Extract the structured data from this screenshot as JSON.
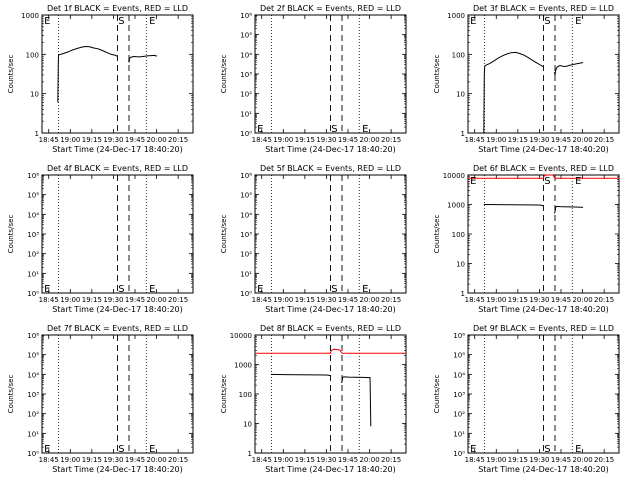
{
  "page": {
    "background": "#ffffff",
    "foreground": "#000000"
  },
  "chart_data": [
    {
      "type": "line",
      "det": "Det 1f",
      "title": "Det 1f BLACK = Events, RED = LLD",
      "xlabel": "Start Time (24-Dec-17 18:40:20)",
      "ylabel": "Counts/sec",
      "x_unit": "minutes since 18:40:20",
      "xlim": [
        0,
        105
      ],
      "x_ticks": [
        4.67,
        19.67,
        34.67,
        49.67,
        64.67,
        79.67,
        94.67
      ],
      "x_tick_labels": [
        "18:45",
        "19:00",
        "19:15",
        "19:30",
        "19:45",
        "20:00",
        "20:15"
      ],
      "y_scale": "log",
      "ylim": [
        1,
        1000
      ],
      "y_ticks": [
        1,
        10,
        100,
        1000
      ],
      "y_tick_labels": [
        "1",
        "10",
        "100",
        "1000"
      ],
      "dotted_vlines": [
        11.5,
        72.5
      ],
      "dashed_vlines": [
        52.5,
        60.5
      ],
      "markers": [
        {
          "text": "E",
          "x": 1.5,
          "y": 1100
        },
        {
          "text": "S",
          "x": 53,
          "y": 1100
        },
        {
          "text": "E",
          "x": 74.5,
          "y": 1100
        }
      ],
      "series": [
        {
          "name": "Events",
          "color": "#000000",
          "segments": [
            {
              "x": [
                11.0,
                11.3,
                11.5,
                12,
                15,
                18,
                21,
                24,
                27,
                30,
                33,
                36,
                39,
                42,
                45,
                48,
                51,
                52.5
              ],
              "y": [
                6,
                60,
                95,
                98,
                105,
                115,
                128,
                140,
                150,
                158,
                155,
                145,
                138,
                125,
                112,
                100,
                95,
                88
              ]
            },
            {
              "x": [
                60.0,
                60.5,
                61,
                62,
                64,
                66,
                68,
                70,
                72,
                74,
                76,
                78,
                80
              ],
              "y": [
                70,
                65,
                80,
                85,
                88,
                87,
                86,
                88,
                90,
                92,
                93,
                94,
                90
              ]
            }
          ]
        }
      ]
    },
    {
      "type": "line",
      "det": "Det 2f",
      "title": "Det 2f BLACK = Events, RED = LLD",
      "xlabel": "Start Time (24-Dec-17 18:40:20)",
      "ylabel": "Counts/sec",
      "x_unit": "minutes since 18:40:20",
      "xlim": [
        0,
        105
      ],
      "x_ticks": [
        4.67,
        19.67,
        34.67,
        49.67,
        64.67,
        79.67,
        94.67
      ],
      "x_tick_labels": [
        "18:45",
        "19:00",
        "19:15",
        "19:30",
        "19:45",
        "20:00",
        "20:15"
      ],
      "y_scale": "log",
      "ylim": [
        1,
        1000000
      ],
      "y_ticks": [
        1,
        10,
        100,
        1000,
        10000,
        100000,
        1000000
      ],
      "y_tick_labels": [
        "10⁰",
        "10¹",
        "10²",
        "10³",
        "10⁴",
        "10⁵",
        "10⁶"
      ],
      "dotted_vlines": [
        11.5,
        72.5
      ],
      "dashed_vlines": [
        52.5,
        60.5
      ],
      "markers": [
        {
          "text": "E",
          "x": 1.5,
          "y": 1.2
        },
        {
          "text": "S",
          "x": 53,
          "y": 1.2
        },
        {
          "text": "E",
          "x": 74.5,
          "y": 1.2
        }
      ],
      "series": []
    },
    {
      "type": "line",
      "det": "Det 3f",
      "title": "Det 3f BLACK = Events, RED = LLD",
      "xlabel": "Start Time (24-Dec-17 18:40:20)",
      "ylabel": "Counts/sec",
      "x_unit": "minutes since 18:40:20",
      "xlim": [
        0,
        105
      ],
      "x_ticks": [
        4.67,
        19.67,
        34.67,
        49.67,
        64.67,
        79.67,
        94.67
      ],
      "x_tick_labels": [
        "18:45",
        "19:00",
        "19:15",
        "19:30",
        "19:45",
        "20:00",
        "20:15"
      ],
      "y_scale": "log",
      "ylim": [
        1,
        1000
      ],
      "y_ticks": [
        1,
        10,
        100,
        1000
      ],
      "y_tick_labels": [
        "1",
        "10",
        "100",
        "1000"
      ],
      "dotted_vlines": [
        11.5,
        72.5
      ],
      "dashed_vlines": [
        52.5,
        60.5
      ],
      "markers": [
        {
          "text": "E",
          "x": 1.5,
          "y": 1100
        },
        {
          "text": "S",
          "x": 53,
          "y": 1100
        },
        {
          "text": "E",
          "x": 74.5,
          "y": 1100
        }
      ],
      "series": [
        {
          "name": "Events",
          "color": "#000000",
          "segments": [
            {
              "x": [
                11.0,
                11.3,
                11.6,
                12,
                15,
                18,
                21,
                24,
                27,
                30,
                33,
                36,
                39,
                42,
                45,
                48,
                51,
                52.5
              ],
              "y": [
                1,
                30,
                50,
                52,
                58,
                68,
                80,
                92,
                102,
                110,
                112,
                105,
                95,
                82,
                70,
                60,
                52,
                48
              ]
            },
            {
              "x": [
                60.0,
                60.5,
                61,
                62,
                64,
                66,
                68,
                70,
                72,
                74,
                76,
                78,
                80
              ],
              "y": [
                35,
                30,
                40,
                48,
                52,
                50,
                49,
                52,
                54,
                56,
                58,
                60,
                62
              ]
            }
          ]
        }
      ]
    },
    {
      "type": "line",
      "det": "Det 4f",
      "title": "Det 4f BLACK = Events, RED = LLD",
      "xlabel": "Start Time (24-Dec-17 18:40:20)",
      "ylabel": "Counts/sec",
      "x_unit": "minutes since 18:40:20",
      "xlim": [
        0,
        105
      ],
      "x_ticks": [
        4.67,
        19.67,
        34.67,
        49.67,
        64.67,
        79.67,
        94.67
      ],
      "x_tick_labels": [
        "18:45",
        "19:00",
        "19:15",
        "19:30",
        "19:45",
        "20:00",
        "20:15"
      ],
      "y_scale": "log",
      "ylim": [
        1,
        1000000
      ],
      "y_ticks": [
        1,
        10,
        100,
        1000,
        10000,
        100000,
        1000000
      ],
      "y_tick_labels": [
        "10⁰",
        "10¹",
        "10²",
        "10³",
        "10⁴",
        "10⁵",
        "10⁶"
      ],
      "dotted_vlines": [
        11.5,
        72.5
      ],
      "dashed_vlines": [
        52.5,
        60.5
      ],
      "markers": [
        {
          "text": "E",
          "x": 1.5,
          "y": 1.2
        },
        {
          "text": "S",
          "x": 53,
          "y": 1.2
        },
        {
          "text": "E",
          "x": 74.5,
          "y": 1.2
        }
      ],
      "series": []
    },
    {
      "type": "line",
      "det": "Det 5f",
      "title": "Det 5f BLACK = Events, RED = LLD",
      "xlabel": "Start Time (24-Dec-17 18:40:20)",
      "ylabel": "Counts/sec",
      "x_unit": "minutes since 18:40:20",
      "xlim": [
        0,
        105
      ],
      "x_ticks": [
        4.67,
        19.67,
        34.67,
        49.67,
        64.67,
        79.67,
        94.67
      ],
      "x_tick_labels": [
        "18:45",
        "19:00",
        "19:15",
        "19:30",
        "19:45",
        "20:00",
        "20:15"
      ],
      "y_scale": "log",
      "ylim": [
        1,
        1000000
      ],
      "y_ticks": [
        1,
        10,
        100,
        1000,
        10000,
        100000,
        1000000
      ],
      "y_tick_labels": [
        "10⁰",
        "10¹",
        "10²",
        "10³",
        "10⁴",
        "10⁵",
        "10⁶"
      ],
      "dotted_vlines": [
        11.5,
        72.5
      ],
      "dashed_vlines": [
        52.5,
        60.5
      ],
      "markers": [
        {
          "text": "E",
          "x": 1.5,
          "y": 1.2
        },
        {
          "text": "S",
          "x": 53,
          "y": 1.2
        },
        {
          "text": "E",
          "x": 74.5,
          "y": 1.2
        }
      ],
      "series": []
    },
    {
      "type": "line",
      "det": "Det 6f",
      "title": "Det 6f BLACK = Events, RED = LLD",
      "xlabel": "Start Time (24-Dec-17 18:40:20)",
      "ylabel": "Counts/sec",
      "x_unit": "minutes since 18:40:20",
      "xlim": [
        0,
        105
      ],
      "x_ticks": [
        4.67,
        19.67,
        34.67,
        49.67,
        64.67,
        79.67,
        94.67
      ],
      "x_tick_labels": [
        "18:45",
        "19:00",
        "19:15",
        "19:30",
        "19:45",
        "20:00",
        "20:15"
      ],
      "y_scale": "log",
      "ylim": [
        1,
        10000
      ],
      "y_ticks": [
        1,
        10,
        100,
        1000,
        10000
      ],
      "y_tick_labels": [
        "1",
        "10",
        "100",
        "1000",
        "10000"
      ],
      "dotted_vlines": [
        11.5,
        72.5
      ],
      "dashed_vlines": [
        52.5,
        60.5
      ],
      "markers": [
        {
          "text": "E",
          "x": 1.5,
          "y": 9000
        },
        {
          "text": "S",
          "x": 53,
          "y": 9000
        },
        {
          "text": "E",
          "x": 74.5,
          "y": 9000
        }
      ],
      "series": [
        {
          "name": "LLD",
          "color": "#ff0000",
          "segments": [
            {
              "x": [
                0,
                52.5,
                53,
                55,
                57,
                59,
                60.5,
                105
              ],
              "y": [
                7800,
                7800,
                9600,
                10500,
                10400,
                10200,
                7800,
                7800
              ]
            }
          ]
        },
        {
          "name": "Events",
          "color": "#000000",
          "segments": [
            {
              "x": [
                11.0,
                11.5,
                20,
                30,
                40,
                50,
                52.5
              ],
              "y": [
                1000,
                1000,
                990,
                980,
                970,
                960,
                900
              ]
            },
            {
              "x": [
                60.0,
                60.5,
                61,
                62,
                64,
                66,
                70,
                75,
                80
              ],
              "y": [
                500,
                560,
                820,
                860,
                850,
                840,
                830,
                820,
                800
              ]
            }
          ]
        }
      ]
    },
    {
      "type": "line",
      "det": "Det 7f",
      "title": "Det 7f BLACK = Events, RED = LLD",
      "xlabel": "Start Time (24-Dec-17 18:40:20)",
      "ylabel": "Counts/sec",
      "x_unit": "minutes since 18:40:20",
      "xlim": [
        0,
        105
      ],
      "x_ticks": [
        4.67,
        19.67,
        34.67,
        49.67,
        64.67,
        79.67,
        94.67
      ],
      "x_tick_labels": [
        "18:45",
        "19:00",
        "19:15",
        "19:30",
        "19:45",
        "20:00",
        "20:15"
      ],
      "y_scale": "log",
      "ylim": [
        1,
        1000000
      ],
      "y_ticks": [
        1,
        10,
        100,
        1000,
        10000,
        100000,
        1000000
      ],
      "y_tick_labels": [
        "10⁰",
        "10¹",
        "10²",
        "10³",
        "10⁴",
        "10⁵",
        "10⁶"
      ],
      "dotted_vlines": [
        11.5,
        72.5
      ],
      "dashed_vlines": [
        52.5,
        60.5
      ],
      "markers": [
        {
          "text": "E",
          "x": 1.5,
          "y": 1.2
        },
        {
          "text": "S",
          "x": 53,
          "y": 1.2
        },
        {
          "text": "E",
          "x": 74.5,
          "y": 1.2
        }
      ],
      "series": []
    },
    {
      "type": "line",
      "det": "Det 8f",
      "title": "Det 8f BLACK = Events, RED = LLD",
      "xlabel": "Start Time (24-Dec-17 18:40:20)",
      "ylabel": "Counts/sec",
      "x_unit": "minutes since 18:40:20",
      "xlim": [
        0,
        105
      ],
      "x_ticks": [
        4.67,
        19.67,
        34.67,
        49.67,
        64.67,
        79.67,
        94.67
      ],
      "x_tick_labels": [
        "18:45",
        "19:00",
        "19:15",
        "19:30",
        "19:45",
        "20:00",
        "20:15"
      ],
      "y_scale": "log",
      "ylim": [
        1,
        10000
      ],
      "y_ticks": [
        1,
        10,
        100,
        1000,
        10000
      ],
      "y_tick_labels": [
        "1",
        "10",
        "100",
        "1000",
        "10000"
      ],
      "dotted_vlines": [
        11.5,
        72.5
      ],
      "dashed_vlines": [
        52.5,
        60.5
      ],
      "markers": [],
      "series": [
        {
          "name": "LLD",
          "color": "#ff0000",
          "segments": [
            {
              "x": [
                0,
                52.5,
                53,
                55,
                57,
                59,
                60.5,
                105
              ],
              "y": [
                2400,
                2400,
                3000,
                3300,
                3200,
                3100,
                2400,
                2400
              ]
            }
          ]
        },
        {
          "name": "Events",
          "color": "#000000",
          "segments": [
            {
              "x": [
                11.0,
                11.5,
                20,
                30,
                40,
                50,
                52.5
              ],
              "y": [
                460,
                460,
                455,
                450,
                445,
                440,
                420
              ]
            },
            {
              "x": [
                60.0,
                60.5,
                61,
                62,
                65,
                70,
                75,
                80,
                80.2,
                80.5
              ],
              "y": [
                240,
                260,
                370,
                380,
                375,
                370,
                365,
                360,
                100,
                8
              ]
            }
          ]
        }
      ]
    },
    {
      "type": "line",
      "det": "Det 9f",
      "title": "Det 9f BLACK = Events, RED = LLD",
      "xlabel": "Start Time (24-Dec-17 18:40:20)",
      "ylabel": "Counts/sec",
      "x_unit": "minutes since 18:40:20",
      "xlim": [
        0,
        105
      ],
      "x_ticks": [
        4.67,
        19.67,
        34.67,
        49.67,
        64.67,
        79.67,
        94.67
      ],
      "x_tick_labels": [
        "18:45",
        "19:00",
        "19:15",
        "19:30",
        "19:45",
        "20:00",
        "20:15"
      ],
      "y_scale": "log",
      "ylim": [
        1,
        1000000
      ],
      "y_ticks": [
        1,
        10,
        100,
        1000,
        10000,
        100000,
        1000000
      ],
      "y_tick_labels": [
        "10⁰",
        "10¹",
        "10²",
        "10³",
        "10⁴",
        "10⁵",
        "10⁶"
      ],
      "dotted_vlines": [
        11.5,
        72.5
      ],
      "dashed_vlines": [
        52.5,
        60.5
      ],
      "markers": [
        {
          "text": "E",
          "x": 1.5,
          "y": 1.2
        },
        {
          "text": "S",
          "x": 53,
          "y": 1.2
        },
        {
          "text": "E",
          "x": 74.5,
          "y": 1.2
        }
      ],
      "series": []
    }
  ]
}
